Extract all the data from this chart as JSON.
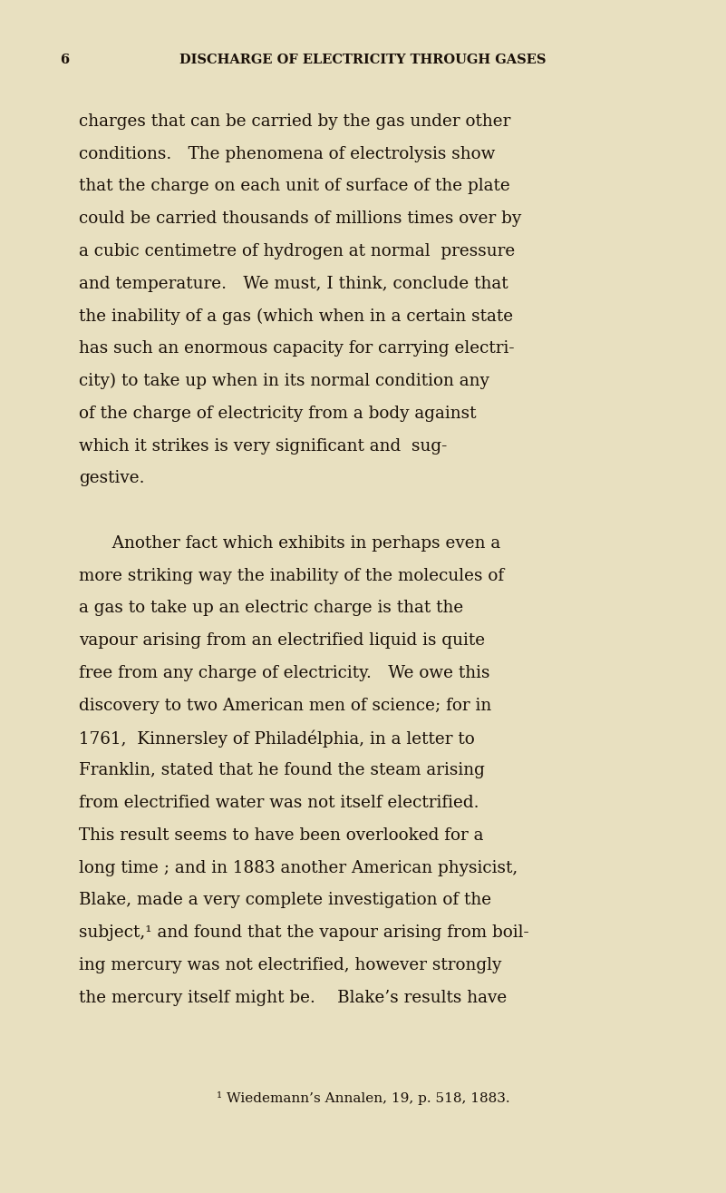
{
  "background_color": "#e8e0c0",
  "text_color": "#1a1008",
  "header_number": "6",
  "header_title": "DISCHARGE OF ELECTRICITY THROUGH GASES",
  "header_fontsize": 10.5,
  "body_fontsize": 13.2,
  "footnote_fontsize": 11.0,
  "body_lines": [
    "charges that can be carried by the gas under other",
    "conditions. The phenomena of electrolysis show",
    "that the charge on each unit of surface of the plate",
    "could be carried thousands of millions times over by",
    "a cubic centimetre of hydrogen at normal  pressure",
    "and temperature. We must, I think, conclude that",
    "the inability of a gas (which when in a certain state",
    "has such an enormous capacity for carrying electri-",
    "city) to take up when in its normal condition any",
    "of the charge of electricity from a body against",
    "which it strikes is very significant and  sug-",
    "gestive.",
    "",
    "  Another fact which exhibits in perhaps even a",
    "more striking way the inability of the molecules of",
    "a gas to take up an electric charge is that the",
    "vapour arising from an electrified liquid is quite",
    "free from any charge of electricity. We owe this",
    "discovery to two American men of science; for in",
    "1761,  Kinnersley of Philadélphia, in a letter to",
    "Franklin, stated that he found the steam arising",
    "from electrified water was not itself electrified.",
    "This result seems to have been overlooked for a",
    "long time ; and in 1883 another American physicist,",
    "Blake, made a very complete investigation of the",
    "subject,¹ and found that the vapour arising from boil-",
    "ing mercury was not electrified, however strongly",
    "the mercury itself might be.  Blake’s results have"
  ],
  "footnote": "¹ Wiedemann’s Annalen, 19, p. 518, 1883."
}
